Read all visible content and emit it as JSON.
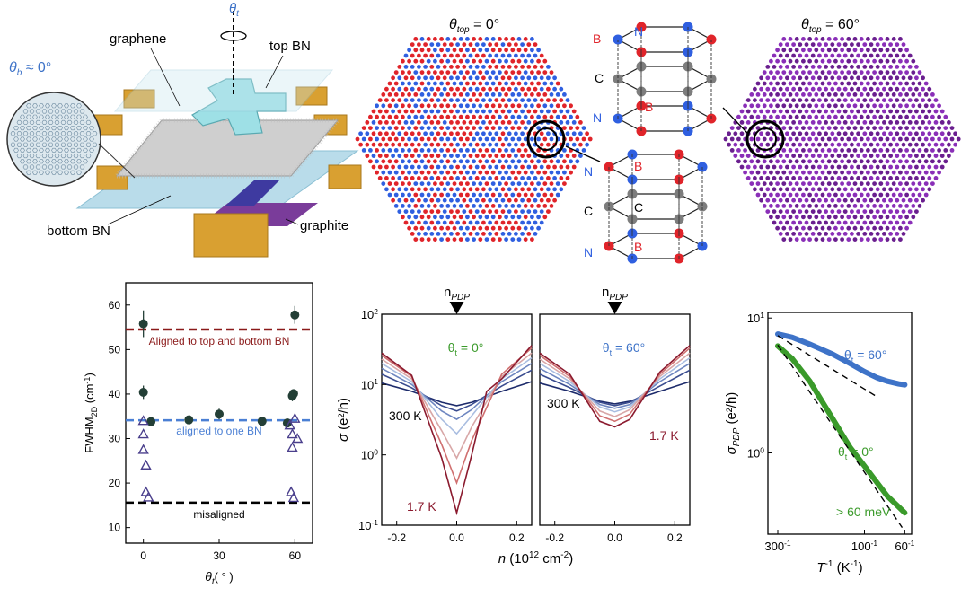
{
  "colors": {
    "navy": "#1d2b6b",
    "maroon": "#8b1a2e",
    "blue_atom": "#2f5fe0",
    "red_atom": "#e0242a",
    "purple_atom": "#8a2fb8",
    "gray_atom": "#7d7d7d",
    "green": "#3a9a2a",
    "blue_text": "#3e73c8",
    "gold": "#d9a031",
    "cyan": "#9ee0e6",
    "graphite": "#7a3c9a",
    "darkgreen_point": "#233f36",
    "triangle": "#4a3f8c",
    "dash_red": "#8b1a1a",
    "dash_blue": "#4a7fd4"
  },
  "device": {
    "theta_t": "θ",
    "theta_t_sub": "t",
    "theta_b_eq": "θ",
    "theta_b_sub": "b",
    "theta_b_val": " ≈ 0°",
    "labels": {
      "graphene": "graphene",
      "top_bn": "top BN",
      "bottom_bn": "bottom BN",
      "graphite": "graphite"
    }
  },
  "lattices": {
    "left_title_theta": "θ",
    "left_title_sub": "top",
    "left_title_val": " = 0°",
    "right_title_theta": "θ",
    "right_title_sub": "top",
    "right_title_val": " = 60°"
  },
  "stacks": {
    "upper": {
      "top_labels": [
        "B",
        "N"
      ],
      "mid_labels": [
        "C"
      ],
      "bottom_labels": [
        "N",
        "B"
      ]
    },
    "lower": {
      "top_labels": [
        "N",
        "B"
      ],
      "mid_labels": [
        "C",
        "C"
      ],
      "bottom_labels": [
        "N",
        "B"
      ]
    }
  },
  "chart_data": [
    {
      "type": "scatter",
      "xlabel_theta": "θ",
      "xlabel_sub": "t",
      "xlabel_unit": "( ° )",
      "ylabel_main": "FWHM",
      "ylabel_sub": "2D",
      "ylabel_unit": " (cm",
      "ylabel_exp": "-1",
      "ylabel_close": ")",
      "xlim": [
        -7,
        67
      ],
      "ylim": [
        6.5,
        65
      ],
      "xticks": [
        "0",
        "30",
        "60"
      ],
      "yticks": [
        "10",
        "20",
        "30",
        "40",
        "50",
        "60"
      ],
      "lines": [
        {
          "label": "Aligned to top and bottom BN",
          "y": 54.5
        },
        {
          "label": "aligned to one BN",
          "y": 34.1
        },
        {
          "label": "misaligned",
          "y": 15.6
        }
      ],
      "circles": [
        {
          "x": 0,
          "y": 55.8,
          "err": 3
        },
        {
          "x": 0,
          "y": 40.4,
          "err": 1.5
        },
        {
          "x": 3,
          "y": 33.8,
          "err": 1
        },
        {
          "x": 18,
          "y": 34.2,
          "err": 0.8
        },
        {
          "x": 30,
          "y": 35.5,
          "err": 1.2
        },
        {
          "x": 47,
          "y": 33.9,
          "err": 0.8
        },
        {
          "x": 57,
          "y": 33.5,
          "err": 1
        },
        {
          "x": 59,
          "y": 39.6,
          "err": 1.2
        },
        {
          "x": 59.5,
          "y": 40.1,
          "err": 1
        },
        {
          "x": 60,
          "y": 57.8,
          "err": 2
        }
      ],
      "triangles": [
        {
          "x": 0,
          "y": 34
        },
        {
          "x": 0,
          "y": 31
        },
        {
          "x": 0,
          "y": 27.5
        },
        {
          "x": 1,
          "y": 24
        },
        {
          "x": 1,
          "y": 18
        },
        {
          "x": 2,
          "y": 16.8
        },
        {
          "x": 58,
          "y": 33
        },
        {
          "x": 59,
          "y": 31
        },
        {
          "x": 59,
          "y": 28
        },
        {
          "x": 60,
          "y": 34.5
        },
        {
          "x": 61,
          "y": 30
        },
        {
          "x": 58.5,
          "y": 18
        },
        {
          "x": 59.5,
          "y": 16.7
        }
      ]
    },
    {
      "type": "line",
      "title": "n",
      "title_sub": "PDP",
      "ylabel_sym": "σ",
      "ylabel_unit": " (e²/h)",
      "xlabel_sym": "n",
      "xlabel_unit": " (10",
      "xlabel_exp1": "12",
      "xlabel_mid": " cm",
      "xlabel_exp2": "-2",
      "xlabel_close": ")",
      "ylim": [
        0.1,
        100
      ],
      "y_log": true,
      "xlim": [
        -0.25,
        0.25
      ],
      "yticks": [
        "10",
        "10",
        "10",
        "10"
      ],
      "ytick_exp": [
        "-1",
        "0",
        "1",
        "2"
      ],
      "panels": [
        {
          "angle_label_theta": "θ",
          "angle_label_sub": "t",
          "angle_label_val": " = 0°",
          "hot_label": "300 K",
          "cold_label": "1.7 K",
          "series": [
            {
              "name": "",
              "curve": [
                [
                  -0.25,
                  10.5
                ],
                [
                  -0.15,
                  8
                ],
                [
                  -0.05,
                  5.6
                ],
                [
                  0,
                  5
                ],
                [
                  0.05,
                  5.6
                ],
                [
                  0.15,
                  8
                ],
                [
                  0.25,
                  11
                ]
              ]
            },
            {
              "name": "",
              "curve": [
                [
                  -0.25,
                  14
                ],
                [
                  -0.15,
                  9
                ],
                [
                  -0.05,
                  5
                ],
                [
                  0,
                  4.2
                ],
                [
                  0.05,
                  5.2
                ],
                [
                  0.15,
                  9.5
                ],
                [
                  0.25,
                  16
                ]
              ]
            },
            {
              "name": "",
              "curve": [
                [
                  -0.25,
                  17
                ],
                [
                  -0.15,
                  10
                ],
                [
                  -0.05,
                  4.2
                ],
                [
                  0,
                  3.2
                ],
                [
                  0.05,
                  4.4
                ],
                [
                  0.15,
                  11
                ],
                [
                  0.25,
                  20
                ]
              ]
            },
            {
              "name": "",
              "curve": [
                [
                  -0.25,
                  20
                ],
                [
                  -0.15,
                  11
                ],
                [
                  -0.05,
                  3.2
                ],
                [
                  0,
                  2
                ],
                [
                  0.05,
                  3.6
                ],
                [
                  0.15,
                  12
                ],
                [
                  0.25,
                  24
                ]
              ]
            },
            {
              "name": "",
              "curve": [
                [
                  -0.25,
                  23
                ],
                [
                  -0.15,
                  12
                ],
                [
                  -0.05,
                  2.2
                ],
                [
                  0,
                  0.9
                ],
                [
                  0.05,
                  2.5
                ],
                [
                  0.15,
                  13
                ],
                [
                  0.25,
                  28
                ]
              ]
            },
            {
              "name": "",
              "curve": [
                [
                  -0.25,
                  26
                ],
                [
                  -0.15,
                  13
                ],
                [
                  -0.05,
                  1.4
                ],
                [
                  0,
                  0.4
                ],
                [
                  0.05,
                  1.6
                ],
                [
                  0.15,
                  14
                ],
                [
                  0.25,
                  33
                ]
              ]
            },
            {
              "name": "",
              "curve": [
                [
                  -0.25,
                  28
                ],
                [
                  -0.15,
                  13.5
                ],
                [
                  -0.05,
                  0.9
                ],
                [
                  0,
                  0.15
                ],
                [
                  0.05,
                  1
                ],
                [
                  0.1,
                  8
                ],
                [
                  0.15,
                  12
                ],
                [
                  0.25,
                  36
                ]
              ]
            }
          ]
        },
        {
          "angle_label_theta": "θ",
          "angle_label_sub": "t",
          "angle_label_val": " = 60°",
          "hot_label": "300 K",
          "cold_label": "1.7 K",
          "series": [
            {
              "name": "",
              "curve": [
                [
                  -0.25,
                  10.5
                ],
                [
                  -0.15,
                  8
                ],
                [
                  -0.05,
                  5.8
                ],
                [
                  0,
                  5.3
                ],
                [
                  0.05,
                  5.8
                ],
                [
                  0.15,
                  8
                ],
                [
                  0.25,
                  11
                ]
              ]
            },
            {
              "name": "",
              "curve": [
                [
                  -0.25,
                  14
                ],
                [
                  -0.15,
                  9
                ],
                [
                  -0.05,
                  5.6
                ],
                [
                  0,
                  5
                ],
                [
                  0.05,
                  5.6
                ],
                [
                  0.15,
                  9.5
                ],
                [
                  0.25,
                  16
                ]
              ]
            },
            {
              "name": "",
              "curve": [
                [
                  -0.25,
                  17
                ],
                [
                  -0.15,
                  10
                ],
                [
                  -0.05,
                  5.2
                ],
                [
                  0,
                  4.6
                ],
                [
                  0.05,
                  5.2
                ],
                [
                  0.15,
                  11
                ],
                [
                  0.25,
                  20
                ]
              ]
            },
            {
              "name": "",
              "curve": [
                [
                  -0.25,
                  20
                ],
                [
                  -0.15,
                  11
                ],
                [
                  -0.05,
                  4.8
                ],
                [
                  0,
                  4.1
                ],
                [
                  0.05,
                  4.8
                ],
                [
                  0.15,
                  12
                ],
                [
                  0.25,
                  24
                ]
              ]
            },
            {
              "name": "",
              "curve": [
                [
                  -0.25,
                  23
                ],
                [
                  -0.15,
                  12
                ],
                [
                  -0.05,
                  4.2
                ],
                [
                  0,
                  3.5
                ],
                [
                  0.05,
                  4.4
                ],
                [
                  0.15,
                  13
                ],
                [
                  0.25,
                  28
                ]
              ]
            },
            {
              "name": "",
              "curve": [
                [
                  -0.25,
                  26
                ],
                [
                  -0.15,
                  13
                ],
                [
                  -0.05,
                  3.6
                ],
                [
                  0,
                  3
                ],
                [
                  0.05,
                  3.8
                ],
                [
                  0.15,
                  14
                ],
                [
                  0.25,
                  33
                ]
              ]
            },
            {
              "name": "",
              "curve": [
                [
                  -0.25,
                  28
                ],
                [
                  -0.15,
                  14
                ],
                [
                  -0.05,
                  3
                ],
                [
                  0,
                  2.5
                ],
                [
                  0.05,
                  3.2
                ],
                [
                  0.15,
                  15
                ],
                [
                  0.25,
                  36
                ]
              ]
            }
          ]
        }
      ],
      "xticks": [
        "-0.2",
        "0.0",
        "0.2"
      ]
    },
    {
      "type": "line",
      "ylabel_sym": "σ",
      "ylabel_sub": "PDP",
      "ylabel_unit": " (e²/h)",
      "xlabel_sym": "T",
      "xlabel_exp": "-1",
      "xlabel_unit": " (K",
      "xlabel_unit_exp": "-1",
      "xlabel_close": ")",
      "x_log": true,
      "y_log": true,
      "xticks": [
        "300",
        "100",
        "60"
      ],
      "xtick_exp": [
        "-1",
        "-1",
        "-1"
      ],
      "yticks": [
        "10",
        "10"
      ],
      "ytick_exp": [
        "0",
        "1"
      ],
      "series": [
        {
          "name": "θt = 60°",
          "label_theta": "θ",
          "label_sub": "t",
          "label_val": " = 60°",
          "points": [
            [
              300,
              7.6
            ],
            [
              250,
              7.2
            ],
            [
              200,
              6.4
            ],
            [
              150,
              5.4
            ],
            [
              120,
              4.6
            ],
            [
              100,
              4.0
            ],
            [
              85,
              3.6
            ],
            [
              75,
              3.4
            ],
            [
              65,
              3.25
            ],
            [
              60,
              3.2
            ]
          ]
        },
        {
          "name": "θt = 0°",
          "label_theta": "θ",
          "label_sub": "t",
          "label_val": " = 0°",
          "points": [
            [
              300,
              6.2
            ],
            [
              250,
              5.0
            ],
            [
              200,
              3.4
            ],
            [
              150,
              1.8
            ],
            [
              120,
              1.1
            ],
            [
              100,
              0.8
            ],
            [
              85,
              0.6
            ],
            [
              75,
              0.48
            ],
            [
              65,
              0.4
            ],
            [
              60,
              0.36
            ]
          ]
        }
      ],
      "annotation": "> 60 meV"
    }
  ]
}
